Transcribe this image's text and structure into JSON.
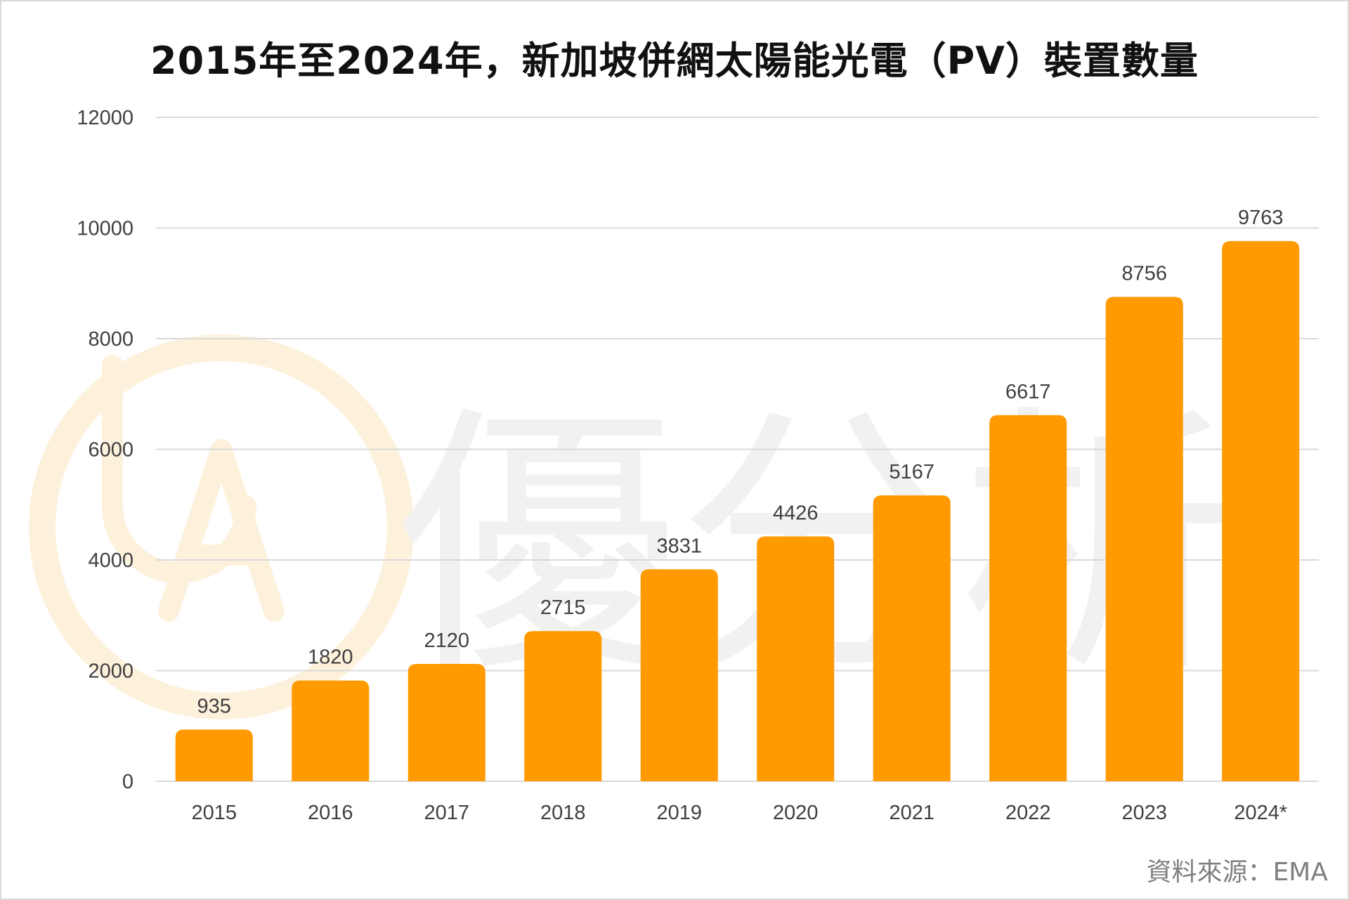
{
  "title": "2015年至2024年，新加坡併網太陽能光電（PV）裝置數量",
  "source": "資料來源：EMA",
  "watermark": {
    "logo_letter": "A",
    "text": "優分析"
  },
  "colors": {
    "bar": "#ff9a00",
    "grid": "#d9d9d9",
    "watermark_logo": "#fdf1dc",
    "watermark_text": "#f1f1f1"
  },
  "chart_data": {
    "type": "bar",
    "title": "2015年至2024年，新加坡併網太陽能光電（PV）裝置數量",
    "xlabel": "",
    "ylabel": "",
    "categories": [
      "2015",
      "2016",
      "2017",
      "2018",
      "2019",
      "2020",
      "2021",
      "2022",
      "2023",
      "2024*"
    ],
    "values": [
      935,
      1820,
      2120,
      2715,
      3831,
      4426,
      5167,
      6617,
      8756,
      9763
    ],
    "ylim": [
      0,
      12000
    ],
    "yticks": [
      0,
      2000,
      4000,
      6000,
      8000,
      10000,
      12000
    ],
    "grid": true,
    "legend": "none",
    "data_labels": true
  }
}
